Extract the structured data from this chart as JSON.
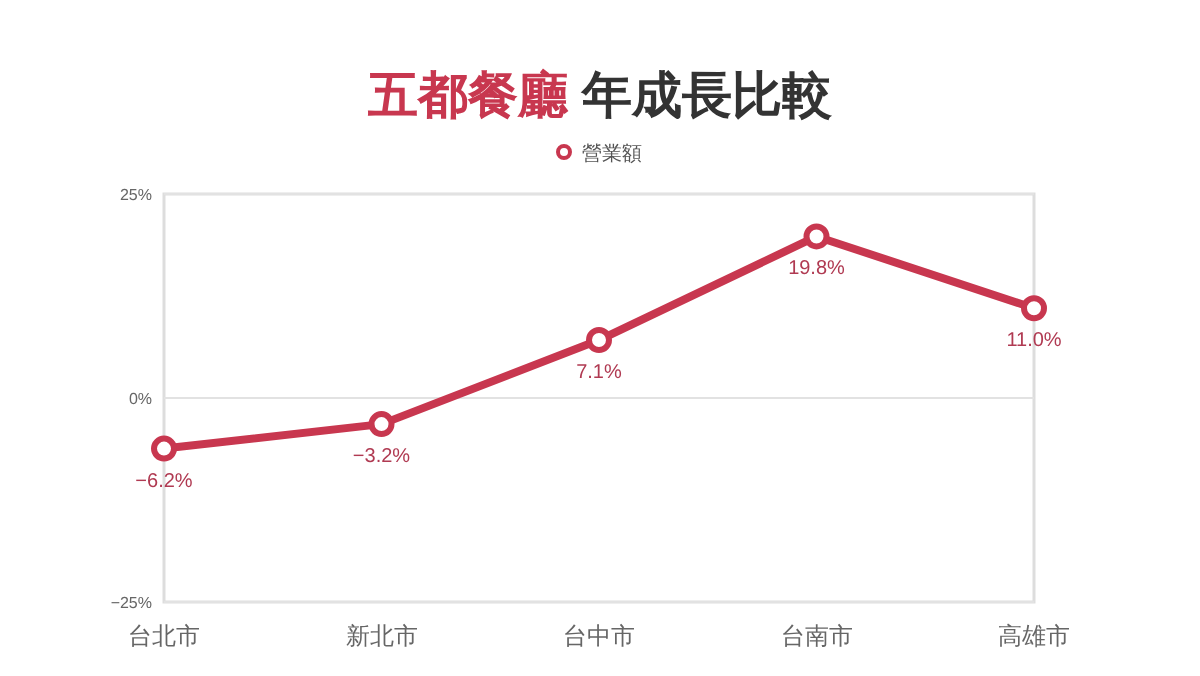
{
  "chart_data": {
    "type": "line",
    "title": "五都餐廳 年成長比較",
    "categories": [
      "台北市",
      "新北市",
      "台中市",
      "台南市",
      "高雄市"
    ],
    "series": [
      {
        "name": "營業額",
        "color": "#c8374f",
        "values": [
          -6.2,
          -3.2,
          7.1,
          19.8,
          11.0
        ],
        "value_labels": [
          "−6.2%",
          "−3.2%",
          "7.1%",
          "19.8%",
          "11.0%"
        ]
      }
    ],
    "ylim": [
      -25,
      25
    ],
    "yticks": [
      {
        "value": 25,
        "label": "25%"
      },
      {
        "value": 0,
        "label": "0%"
      },
      {
        "value": -25,
        "label": "−25%"
      }
    ],
    "grid": "y",
    "legend": "top",
    "marker": "circle",
    "line_style": "solid"
  }
}
